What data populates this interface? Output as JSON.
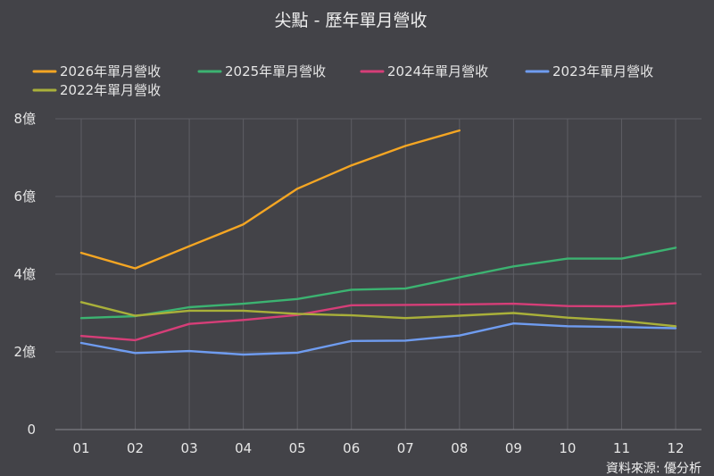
{
  "chart_data": {
    "type": "line",
    "title": "尖點 - 歷年單月營收",
    "categories": [
      "01",
      "02",
      "03",
      "04",
      "05",
      "06",
      "07",
      "08",
      "09",
      "10",
      "11",
      "12"
    ],
    "y_ticks": [
      "0",
      "2億",
      "4億",
      "6億",
      "8億"
    ],
    "ylim": [
      0,
      8
    ],
    "y_unit": "億",
    "grid": true,
    "legend_position": "top-left",
    "series": [
      {
        "name": "2026年單月營收",
        "color": "#f5a623",
        "values": [
          4.55,
          4.15,
          4.72,
          5.28,
          6.2,
          6.8,
          7.3,
          7.7,
          null,
          null,
          null,
          null
        ]
      },
      {
        "name": "2025年單月營收",
        "color": "#3cb371",
        "values": [
          2.87,
          2.92,
          3.15,
          3.24,
          3.36,
          3.6,
          3.63,
          3.92,
          4.2,
          4.4,
          4.4,
          4.68
        ]
      },
      {
        "name": "2024年單月營收",
        "color": "#d63e78",
        "values": [
          2.41,
          2.3,
          2.72,
          2.82,
          2.95,
          3.2,
          3.21,
          3.22,
          3.24,
          3.18,
          3.17,
          3.25
        ]
      },
      {
        "name": "2023年單月營收",
        "color": "#6f9cf0",
        "values": [
          2.23,
          1.97,
          2.02,
          1.93,
          1.98,
          2.28,
          2.29,
          2.42,
          2.73,
          2.66,
          2.64,
          2.61
        ]
      },
      {
        "name": "2022年單月營收",
        "color": "#a9b03a",
        "values": [
          3.28,
          2.93,
          3.06,
          3.06,
          2.98,
          2.94,
          2.87,
          2.93,
          3.0,
          2.88,
          2.8,
          2.66
        ]
      }
    ],
    "source": "資料來源: 優分析"
  }
}
